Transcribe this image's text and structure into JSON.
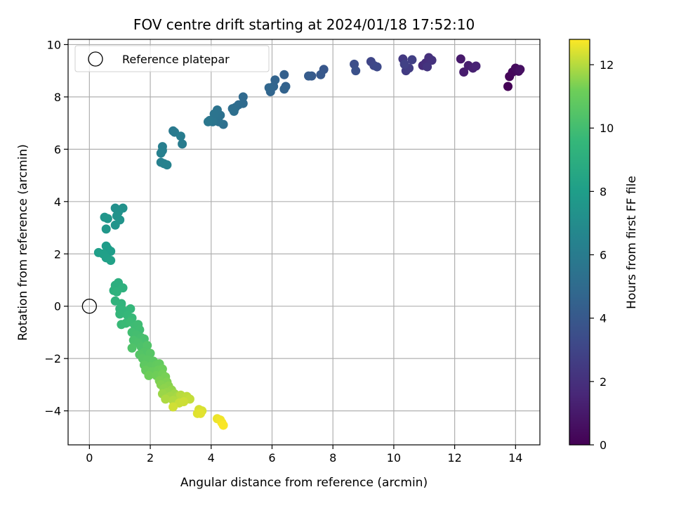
{
  "chart_data": {
    "type": "scatter",
    "title": "FOV centre drift starting at 2024/01/18 17:52:10",
    "xlabel": "Angular distance from reference (arcmin)",
    "ylabel": "Rotation from reference (arcmin)",
    "xlim": [
      -0.7,
      14.8
    ],
    "ylim": [
      -5.3,
      10.2
    ],
    "x_ticks": [
      0,
      2,
      4,
      6,
      8,
      10,
      12,
      14
    ],
    "y_ticks": [
      -4,
      -2,
      0,
      2,
      4,
      6,
      8,
      10
    ],
    "grid": true,
    "legend": {
      "location": "upper-left",
      "entries": [
        "Reference platepar"
      ]
    },
    "reference_point": {
      "name": "Reference platepar",
      "x": 0,
      "y": 0
    },
    "colorbar": {
      "label": "Hours from first FF file",
      "colormap": "viridis",
      "range": [
        0,
        12.8
      ],
      "ticks": [
        0,
        2,
        4,
        6,
        8,
        10,
        12
      ]
    },
    "series": [
      {
        "points": [
          {
            "x": 13.75,
            "y": 8.4,
            "c": 0.1
          },
          {
            "x": 13.8,
            "y": 8.78,
            "c": 0.2
          },
          {
            "x": 13.9,
            "y": 8.95,
            "c": 0.3
          },
          {
            "x": 14.0,
            "y": 9.1,
            "c": 0.4
          },
          {
            "x": 14.1,
            "y": 8.98,
            "c": 0.5
          },
          {
            "x": 14.15,
            "y": 9.05,
            "c": 0.6
          },
          {
            "x": 12.2,
            "y": 9.45,
            "c": 1.0
          },
          {
            "x": 12.3,
            "y": 8.95,
            "c": 1.1
          },
          {
            "x": 12.45,
            "y": 9.2,
            "c": 1.2
          },
          {
            "x": 12.6,
            "y": 9.1,
            "c": 1.3
          },
          {
            "x": 12.7,
            "y": 9.18,
            "c": 1.4
          },
          {
            "x": 10.95,
            "y": 9.2,
            "c": 1.8
          },
          {
            "x": 11.05,
            "y": 9.3,
            "c": 1.9
          },
          {
            "x": 11.15,
            "y": 9.5,
            "c": 2.0
          },
          {
            "x": 11.25,
            "y": 9.4,
            "c": 2.1
          },
          {
            "x": 11.1,
            "y": 9.15,
            "c": 2.2
          },
          {
            "x": 10.3,
            "y": 9.45,
            "c": 2.4
          },
          {
            "x": 10.4,
            "y": 9.0,
            "c": 2.5
          },
          {
            "x": 10.5,
            "y": 9.1,
            "c": 2.6
          },
          {
            "x": 10.6,
            "y": 9.42,
            "c": 2.7
          },
          {
            "x": 10.35,
            "y": 9.25,
            "c": 2.8
          },
          {
            "x": 9.25,
            "y": 9.35,
            "c": 3.0
          },
          {
            "x": 9.35,
            "y": 9.2,
            "c": 3.1
          },
          {
            "x": 9.45,
            "y": 9.15,
            "c": 3.2
          },
          {
            "x": 8.7,
            "y": 9.25,
            "c": 3.5
          },
          {
            "x": 8.75,
            "y": 9.0,
            "c": 3.6
          },
          {
            "x": 7.7,
            "y": 9.05,
            "c": 3.9
          },
          {
            "x": 7.6,
            "y": 8.85,
            "c": 4.0
          },
          {
            "x": 7.3,
            "y": 8.8,
            "c": 4.1
          },
          {
            "x": 7.2,
            "y": 8.8,
            "c": 4.2
          },
          {
            "x": 6.4,
            "y": 8.85,
            "c": 4.4
          },
          {
            "x": 6.45,
            "y": 8.4,
            "c": 4.5
          },
          {
            "x": 6.4,
            "y": 8.3,
            "c": 4.55
          },
          {
            "x": 6.1,
            "y": 8.65,
            "c": 4.6
          },
          {
            "x": 6.05,
            "y": 8.4,
            "c": 4.65
          },
          {
            "x": 5.95,
            "y": 8.2,
            "c": 4.7
          },
          {
            "x": 5.9,
            "y": 8.35,
            "c": 4.75
          },
          {
            "x": 5.05,
            "y": 8.0,
            "c": 4.9
          },
          {
            "x": 5.05,
            "y": 7.75,
            "c": 5.0
          },
          {
            "x": 4.9,
            "y": 7.7,
            "c": 5.05
          },
          {
            "x": 4.8,
            "y": 7.6,
            "c": 5.1
          },
          {
            "x": 4.7,
            "y": 7.55,
            "c": 5.15
          },
          {
            "x": 4.75,
            "y": 7.45,
            "c": 5.2
          },
          {
            "x": 4.4,
            "y": 6.95,
            "c": 5.3
          },
          {
            "x": 4.3,
            "y": 7.3,
            "c": 5.35
          },
          {
            "x": 4.25,
            "y": 7.05,
            "c": 5.4
          },
          {
            "x": 4.2,
            "y": 7.5,
            "c": 5.45
          },
          {
            "x": 4.15,
            "y": 7.25,
            "c": 5.5
          },
          {
            "x": 4.1,
            "y": 7.35,
            "c": 5.55
          },
          {
            "x": 4.05,
            "y": 7.05,
            "c": 5.6
          },
          {
            "x": 3.95,
            "y": 7.1,
            "c": 5.65
          },
          {
            "x": 3.9,
            "y": 7.05,
            "c": 5.7
          },
          {
            "x": 2.75,
            "y": 6.7,
            "c": 5.85
          },
          {
            "x": 2.8,
            "y": 6.65,
            "c": 5.9
          },
          {
            "x": 3.05,
            "y": 6.2,
            "c": 6.0
          },
          {
            "x": 3.0,
            "y": 6.5,
            "c": 6.05
          },
          {
            "x": 2.4,
            "y": 6.1,
            "c": 6.15
          },
          {
            "x": 2.4,
            "y": 5.95,
            "c": 6.2
          },
          {
            "x": 2.35,
            "y": 5.85,
            "c": 6.25
          },
          {
            "x": 2.35,
            "y": 5.5,
            "c": 6.3
          },
          {
            "x": 2.45,
            "y": 5.45,
            "c": 6.35
          },
          {
            "x": 2.55,
            "y": 5.4,
            "c": 6.4
          },
          {
            "x": 0.85,
            "y": 3.75,
            "c": 7.2
          },
          {
            "x": 1.1,
            "y": 3.75,
            "c": 7.25
          },
          {
            "x": 0.95,
            "y": 3.6,
            "c": 7.3
          },
          {
            "x": 0.9,
            "y": 3.45,
            "c": 7.35
          },
          {
            "x": 1.0,
            "y": 3.3,
            "c": 7.4
          },
          {
            "x": 0.85,
            "y": 3.1,
            "c": 7.45
          },
          {
            "x": 0.5,
            "y": 3.4,
            "c": 7.5
          },
          {
            "x": 0.6,
            "y": 3.35,
            "c": 7.55
          },
          {
            "x": 0.55,
            "y": 2.95,
            "c": 7.6
          },
          {
            "x": 0.55,
            "y": 2.3,
            "c": 7.9
          },
          {
            "x": 0.6,
            "y": 2.2,
            "c": 7.95
          },
          {
            "x": 0.7,
            "y": 2.1,
            "c": 8.0
          },
          {
            "x": 0.3,
            "y": 2.05,
            "c": 8.05
          },
          {
            "x": 0.45,
            "y": 2.0,
            "c": 8.1
          },
          {
            "x": 0.55,
            "y": 1.85,
            "c": 8.15
          },
          {
            "x": 0.7,
            "y": 1.75,
            "c": 8.2
          },
          {
            "x": 0.85,
            "y": 0.8,
            "c": 9.0
          },
          {
            "x": 0.95,
            "y": 0.9,
            "c": 9.05
          },
          {
            "x": 0.8,
            "y": 0.6,
            "c": 9.1
          },
          {
            "x": 1.1,
            "y": 0.7,
            "c": 9.15
          },
          {
            "x": 0.9,
            "y": 0.55,
            "c": 9.2
          },
          {
            "x": 0.85,
            "y": 0.2,
            "c": 9.3
          },
          {
            "x": 1.05,
            "y": 0.1,
            "c": 9.35
          },
          {
            "x": 1.0,
            "y": -0.1,
            "c": 9.4
          },
          {
            "x": 1.1,
            "y": -0.15,
            "c": 9.45
          },
          {
            "x": 1.0,
            "y": -0.3,
            "c": 9.5
          },
          {
            "x": 1.35,
            "y": -0.1,
            "c": 9.55
          },
          {
            "x": 1.25,
            "y": -0.35,
            "c": 9.6
          },
          {
            "x": 1.4,
            "y": -0.45,
            "c": 9.65
          },
          {
            "x": 1.05,
            "y": -0.7,
            "c": 9.7
          },
          {
            "x": 1.2,
            "y": -0.65,
            "c": 9.75
          },
          {
            "x": 1.35,
            "y": -0.6,
            "c": 9.8
          },
          {
            "x": 1.5,
            "y": -0.75,
            "c": 9.85
          },
          {
            "x": 1.6,
            "y": -0.7,
            "c": 9.9
          },
          {
            "x": 1.65,
            "y": -0.9,
            "c": 9.95
          },
          {
            "x": 1.4,
            "y": -1.0,
            "c": 10.0
          },
          {
            "x": 1.55,
            "y": -1.1,
            "c": 10.05
          },
          {
            "x": 1.7,
            "y": -1.2,
            "c": 10.1
          },
          {
            "x": 1.8,
            "y": -1.25,
            "c": 10.15
          },
          {
            "x": 1.45,
            "y": -1.3,
            "c": 10.2
          },
          {
            "x": 1.6,
            "y": -1.4,
            "c": 10.25
          },
          {
            "x": 1.7,
            "y": -1.55,
            "c": 10.3
          },
          {
            "x": 1.4,
            "y": -1.6,
            "c": 10.35
          },
          {
            "x": 1.9,
            "y": -1.5,
            "c": 10.4
          },
          {
            "x": 1.8,
            "y": -1.75,
            "c": 10.45
          },
          {
            "x": 1.65,
            "y": -1.85,
            "c": 10.5
          },
          {
            "x": 2.0,
            "y": -1.8,
            "c": 10.55
          },
          {
            "x": 1.75,
            "y": -2.0,
            "c": 10.6
          },
          {
            "x": 1.9,
            "y": -2.05,
            "c": 10.65
          },
          {
            "x": 2.1,
            "y": -2.1,
            "c": 10.7
          },
          {
            "x": 1.8,
            "y": -2.25,
            "c": 10.75
          },
          {
            "x": 2.0,
            "y": -2.3,
            "c": 10.8
          },
          {
            "x": 2.2,
            "y": -2.25,
            "c": 10.85
          },
          {
            "x": 2.3,
            "y": -2.2,
            "c": 10.9
          },
          {
            "x": 1.85,
            "y": -2.45,
            "c": 10.95
          },
          {
            "x": 2.05,
            "y": -2.5,
            "c": 11.0
          },
          {
            "x": 2.25,
            "y": -2.45,
            "c": 11.05
          },
          {
            "x": 2.4,
            "y": -2.4,
            "c": 11.1
          },
          {
            "x": 1.95,
            "y": -2.65,
            "c": 11.15
          },
          {
            "x": 2.2,
            "y": -2.65,
            "c": 11.2
          },
          {
            "x": 2.4,
            "y": -2.6,
            "c": 11.25
          },
          {
            "x": 2.5,
            "y": -2.7,
            "c": 11.3
          },
          {
            "x": 2.3,
            "y": -2.85,
            "c": 11.35
          },
          {
            "x": 2.55,
            "y": -2.9,
            "c": 11.4
          },
          {
            "x": 2.35,
            "y": -3.0,
            "c": 11.45
          },
          {
            "x": 2.6,
            "y": -3.05,
            "c": 11.5
          },
          {
            "x": 2.45,
            "y": -3.15,
            "c": 11.55
          },
          {
            "x": 2.7,
            "y": -3.2,
            "c": 11.6
          },
          {
            "x": 2.55,
            "y": -3.3,
            "c": 11.65
          },
          {
            "x": 2.4,
            "y": -3.35,
            "c": 11.7
          },
          {
            "x": 2.8,
            "y": -3.35,
            "c": 11.75
          },
          {
            "x": 2.65,
            "y": -3.45,
            "c": 11.8
          },
          {
            "x": 2.9,
            "y": -3.45,
            "c": 11.85
          },
          {
            "x": 2.5,
            "y": -3.55,
            "c": 11.9
          },
          {
            "x": 2.75,
            "y": -3.6,
            "c": 11.95
          },
          {
            "x": 3.0,
            "y": -3.4,
            "c": 12.0
          },
          {
            "x": 3.1,
            "y": -3.5,
            "c": 12.05
          },
          {
            "x": 3.2,
            "y": -3.45,
            "c": 12.1
          },
          {
            "x": 3.3,
            "y": -3.55,
            "c": 12.15
          },
          {
            "x": 2.95,
            "y": -3.7,
            "c": 12.2
          },
          {
            "x": 3.1,
            "y": -3.65,
            "c": 12.25
          },
          {
            "x": 2.75,
            "y": -3.85,
            "c": 12.3
          },
          {
            "x": 3.6,
            "y": -3.95,
            "c": 12.35
          },
          {
            "x": 3.7,
            "y": -4.0,
            "c": 12.4
          },
          {
            "x": 3.55,
            "y": -4.1,
            "c": 12.45
          },
          {
            "x": 3.65,
            "y": -4.1,
            "c": 12.5
          },
          {
            "x": 4.2,
            "y": -4.3,
            "c": 12.6
          },
          {
            "x": 4.3,
            "y": -4.35,
            "c": 12.65
          },
          {
            "x": 4.35,
            "y": -4.45,
            "c": 12.7
          },
          {
            "x": 4.4,
            "y": -4.55,
            "c": 12.75
          }
        ]
      }
    ]
  }
}
